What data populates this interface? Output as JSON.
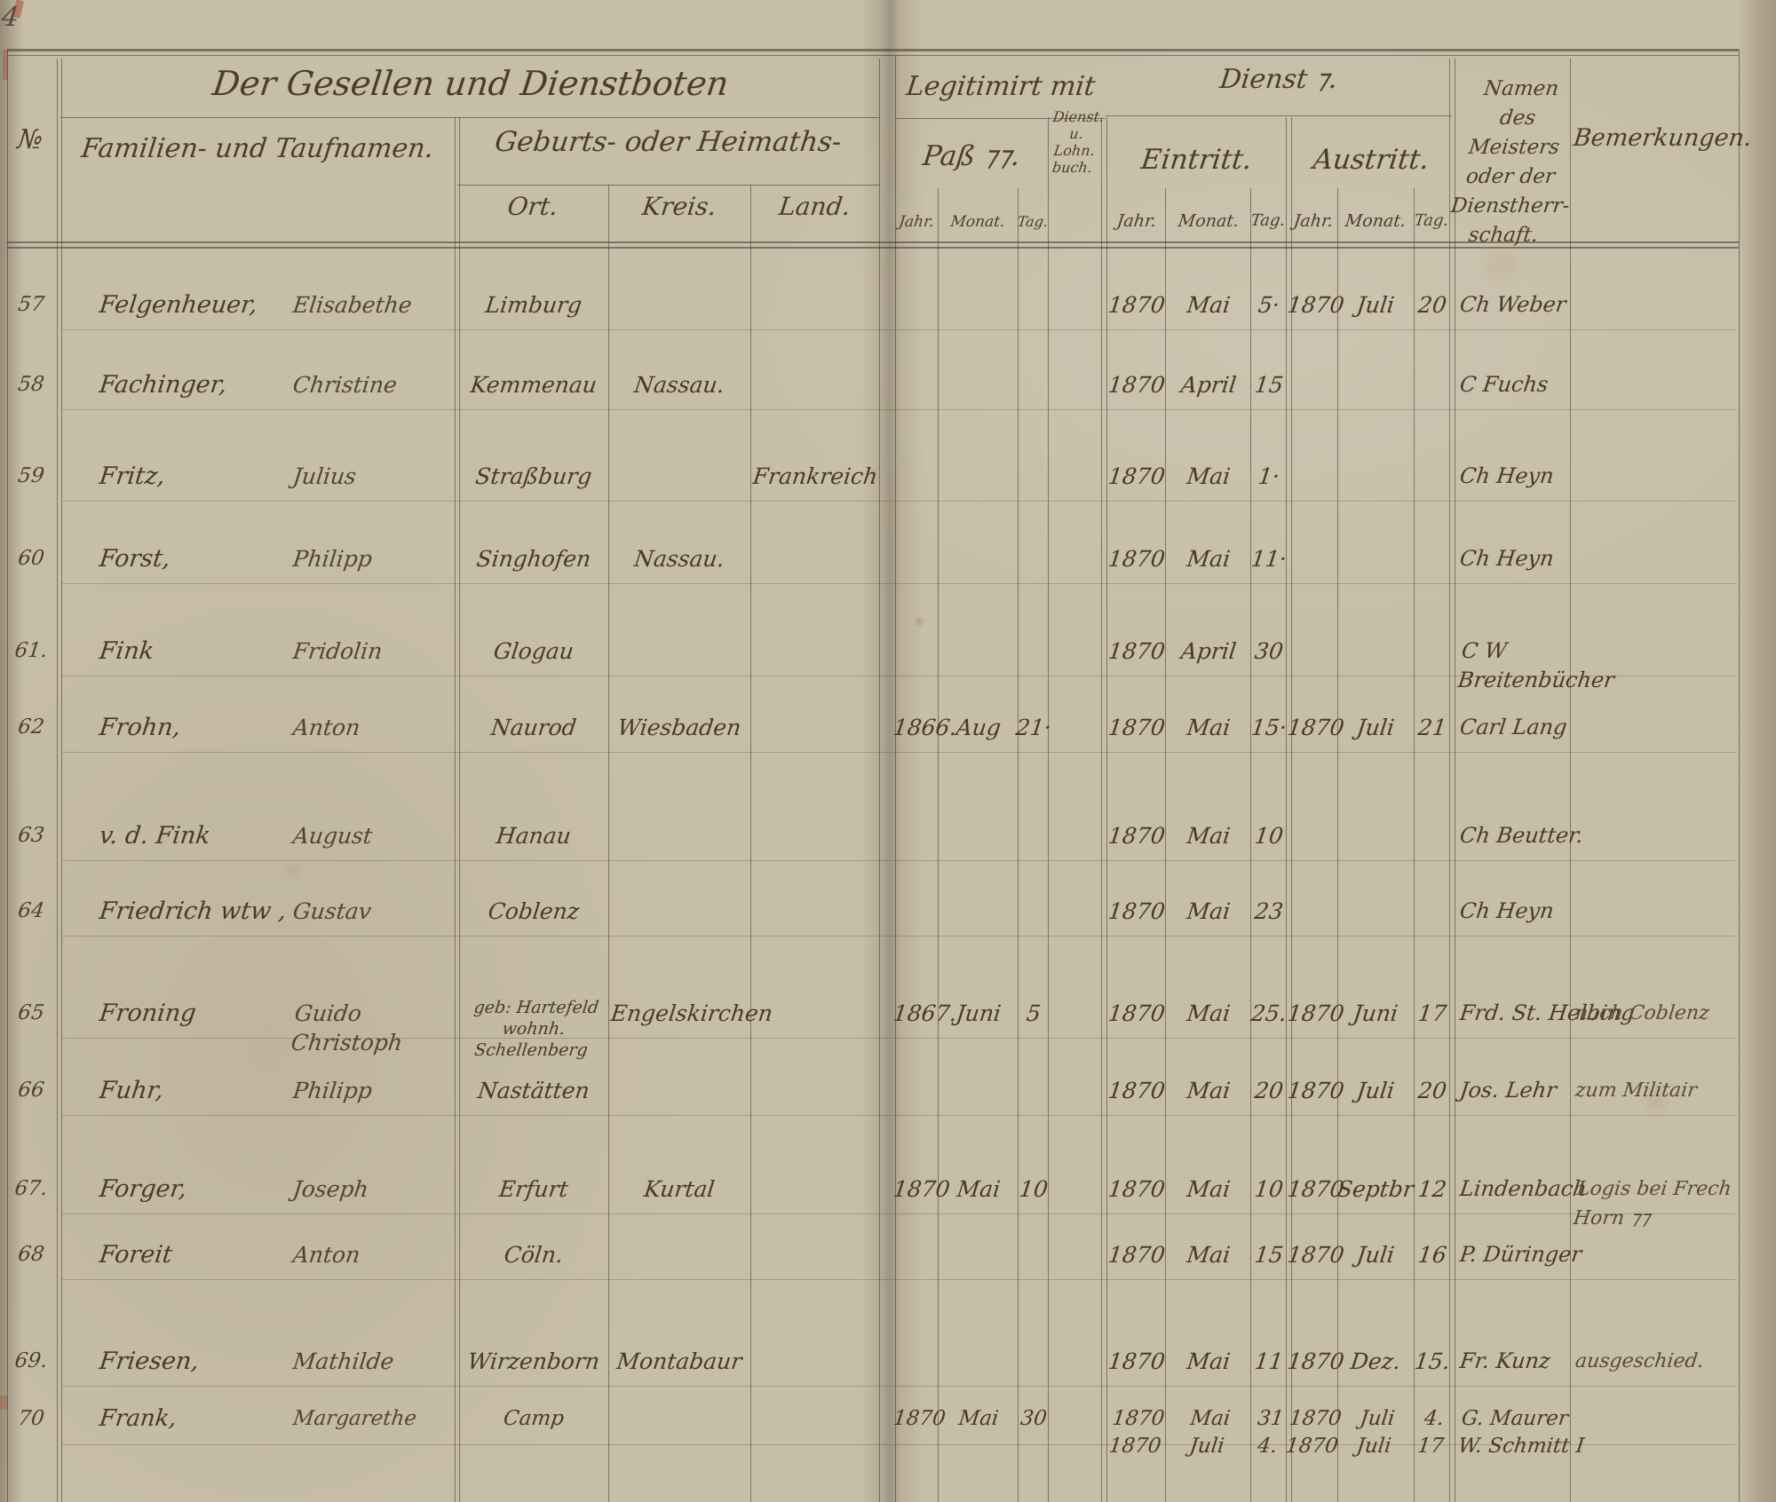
{
  "page": {
    "number": "4"
  },
  "palette": {
    "paper": "#c7bea9",
    "ink": "#4a3b28",
    "line": "#40352680",
    "fold_shadow": "#3c3223",
    "red_mark": "#a53a26"
  },
  "headers": {
    "group_gesellen": "Der Gesellen und Dienstboten",
    "no": "№",
    "namen": "Familien- und Taufnamen.",
    "geburts_group": "Geburts- oder Heimaths-",
    "ort": "Ort.",
    "kreis": "Kreis.",
    "land": "Land.",
    "legitimiert_group": "Legitimirt mit",
    "pass": "Paß ⁊⁊.",
    "dienstbuch": "Dienst.\nu.\nLohn.\nbuch.",
    "dienst_group": "Dienst ⁊.",
    "eintritt": "Eintritt.",
    "austritt": "Austritt.",
    "jahr": "Jahr.",
    "monat": "Monat.",
    "tag": "Tag.",
    "meister": "Namen des\nMeisters\noder der\nDienstherr-\nschaft.",
    "bemerkungen": "Bemerkungen."
  },
  "rows": [
    {
      "no": "57",
      "family": "Felgenheuer,",
      "given": "Elisabethe",
      "ort": "Limburg",
      "kreis": "",
      "land": "",
      "pass_jahr": "",
      "pass_monat": "",
      "pass_tag": "",
      "ein_jahr": "1870",
      "ein_monat": "Mai",
      "ein_tag": "5·",
      "aus_jahr": "1870",
      "aus_monat": "Juli",
      "aus_tag": "20",
      "meister": "Ch Weber",
      "bemerkung": ""
    },
    {
      "no": "58",
      "family": "Fachinger,",
      "given": "Christine",
      "ort": "Kemmenau",
      "kreis": "Nassau.",
      "land": "",
      "pass_jahr": "",
      "pass_monat": "",
      "pass_tag": "",
      "ein_jahr": "1870",
      "ein_monat": "April",
      "ein_tag": "15",
      "aus_jahr": "",
      "aus_monat": "",
      "aus_tag": "",
      "meister": "C Fuchs",
      "bemerkung": ""
    },
    {
      "no": "59",
      "family": "Fritz,",
      "given": "Julius",
      "ort": "Straßburg",
      "kreis": "",
      "land": "Frankreich",
      "pass_jahr": "",
      "pass_monat": "",
      "pass_tag": "",
      "ein_jahr": "1870",
      "ein_monat": "Mai",
      "ein_tag": "1·",
      "aus_jahr": "",
      "aus_monat": "",
      "aus_tag": "",
      "meister": "Ch Heyn",
      "bemerkung": ""
    },
    {
      "no": "60",
      "family": "Forst,",
      "given": "Philipp",
      "ort": "Singhofen",
      "kreis": "Nassau.",
      "land": "",
      "pass_jahr": "",
      "pass_monat": "",
      "pass_tag": "",
      "ein_jahr": "1870",
      "ein_monat": "Mai",
      "ein_tag": "11·",
      "aus_jahr": "",
      "aus_monat": "",
      "aus_tag": "",
      "meister": "Ch Heyn",
      "bemerkung": ""
    },
    {
      "no": "61.",
      "family": "Fink",
      "given": "Fridolin",
      "ort": "Glogau",
      "kreis": "",
      "land": "",
      "pass_jahr": "",
      "pass_monat": "",
      "pass_tag": "",
      "ein_jahr": "1870",
      "ein_monat": "April",
      "ein_tag": "30",
      "aus_jahr": "",
      "aus_monat": "",
      "aus_tag": "",
      "meister": "C W Breitenbücher",
      "bemerkung": ""
    },
    {
      "no": "62",
      "family": "Frohn,",
      "given": "Anton",
      "ort": "Naurod",
      "kreis": "Wiesbaden",
      "land": "",
      "pass_jahr": "1866.",
      "pass_monat": "Aug",
      "pass_tag": "21·",
      "ein_jahr": "1870",
      "ein_monat": "Mai",
      "ein_tag": "15·",
      "aus_jahr": "1870",
      "aus_monat": "Juli",
      "aus_tag": "21",
      "meister": "Carl Lang",
      "bemerkung": ""
    },
    {
      "no": "63",
      "family": "v. d. Fink",
      "given": "August",
      "ort": "Hanau",
      "kreis": "",
      "land": "",
      "pass_jahr": "",
      "pass_monat": "",
      "pass_tag": "",
      "ein_jahr": "1870",
      "ein_monat": "Mai",
      "ein_tag": "10",
      "aus_jahr": "",
      "aus_monat": "",
      "aus_tag": "",
      "meister": "Ch Beutter.",
      "bemerkung": ""
    },
    {
      "no": "64",
      "family": "Friedrich   wtw ,",
      "given": "Gustav",
      "ort": "Coblenz",
      "kreis": "",
      "land": "",
      "pass_jahr": "",
      "pass_monat": "",
      "pass_tag": "",
      "ein_jahr": "1870",
      "ein_monat": "Mai",
      "ein_tag": "23",
      "aus_jahr": "",
      "aus_monat": "",
      "aus_tag": "",
      "meister": "Ch Heyn",
      "bemerkung": ""
    },
    {
      "no": "65",
      "family": "Froning",
      "given": "Guido  Christoph",
      "ort": "geb: Hartefeld\nwohnh. Schellenberg",
      "kreis": "Engelskirchen",
      "land": "",
      "pass_jahr": "1867.",
      "pass_monat": "Juni",
      "pass_tag": "5",
      "ein_jahr": "1870",
      "ein_monat": "Mai",
      "ein_tag": "25.",
      "aus_jahr": "1870",
      "aus_monat": "Juni",
      "aus_tag": "17",
      "meister": "Frd. St. Helbing",
      "bemerkung": "nach Coblenz"
    },
    {
      "no": "66",
      "family": "Fuhr,",
      "given": "Philipp",
      "ort": "Nastätten",
      "kreis": "",
      "land": "",
      "pass_jahr": "",
      "pass_monat": "",
      "pass_tag": "",
      "ein_jahr": "1870",
      "ein_monat": "Mai",
      "ein_tag": "20",
      "aus_jahr": "1870",
      "aus_monat": "Juli",
      "aus_tag": "20",
      "meister": "Jos. Lehr",
      "bemerkung": "zum Militair"
    },
    {
      "no": "67.",
      "family": "Forger,",
      "given": "Joseph",
      "ort": "Erfurt",
      "kreis": "Kurtal",
      "land": "",
      "pass_jahr": "1870",
      "pass_monat": "Mai",
      "pass_tag": "10",
      "ein_jahr": "1870",
      "ein_monat": "Mai",
      "ein_tag": "10",
      "aus_jahr": "1870",
      "aus_monat": "Septbr",
      "aus_tag": "12",
      "meister": "Lindenbach",
      "bemerkung": "Logis bei Frech Horn ⁊⁊"
    },
    {
      "no": "68",
      "family": "Foreit",
      "given": "Anton",
      "ort": "Cöln.",
      "kreis": "",
      "land": "",
      "pass_jahr": "",
      "pass_monat": "",
      "pass_tag": "",
      "ein_jahr": "1870",
      "ein_monat": "Mai",
      "ein_tag": "15",
      "aus_jahr": "1870",
      "aus_monat": "Juli",
      "aus_tag": "16",
      "meister": "P. Düringer",
      "bemerkung": ""
    },
    {
      "no": "69.",
      "family": "Friesen,",
      "given": "Mathilde",
      "ort": "Wirzenborn",
      "kreis": "Montabaur",
      "land": "",
      "pass_jahr": "",
      "pass_monat": "",
      "pass_tag": "",
      "ein_jahr": "1870",
      "ein_monat": "Mai",
      "ein_tag": "11",
      "aus_jahr": "1870",
      "aus_monat": "Dez.",
      "aus_tag": "15.",
      "meister": "Fr. Kunz",
      "bemerkung": "ausgeschied."
    },
    {
      "no": "70",
      "family": "Frank,",
      "given": "Margarethe",
      "ort": "Camp",
      "kreis": "",
      "land": "",
      "pass_jahr": "1870",
      "pass_monat": "Mai",
      "pass_tag": "30",
      "ein_jahr": "1870\n1870",
      "ein_monat": "Mai\nJuli",
      "ein_tag": "31\n4.",
      "aus_jahr": "1870\n1870",
      "aus_monat": "Juli\nJuli",
      "aus_tag": "4.\n17",
      "meister": "G. Maurer\nW. Schmitt I",
      "bemerkung": ""
    }
  ]
}
